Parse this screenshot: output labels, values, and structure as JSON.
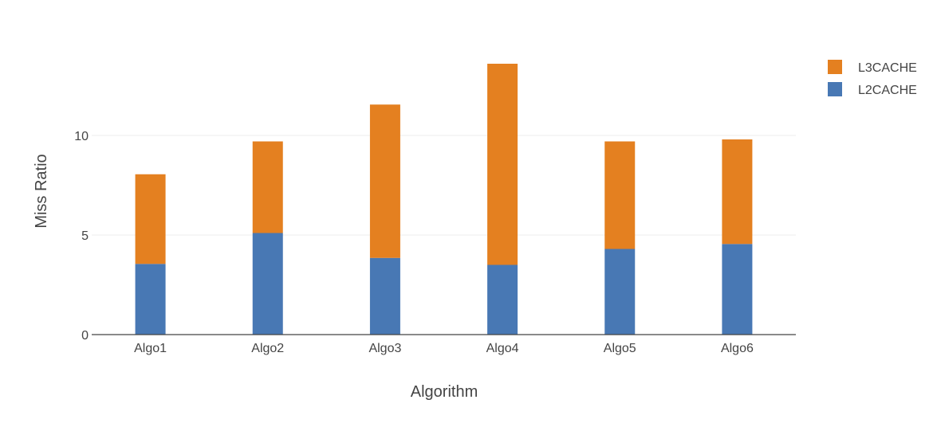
{
  "chart_data": {
    "type": "bar",
    "stacked": true,
    "categories": [
      "Algo1",
      "Algo2",
      "Algo3",
      "Algo4",
      "Algo5",
      "Algo6"
    ],
    "series": [
      {
        "name": "L2CACHE",
        "color": "#4878b4",
        "values": [
          3.55,
          5.1,
          3.85,
          3.5,
          4.3,
          4.55
        ]
      },
      {
        "name": "L3CACHE",
        "color": "#e48020",
        "values": [
          4.5,
          4.6,
          7.7,
          10.1,
          5.4,
          5.25
        ]
      }
    ],
    "xlabel": "Algorithm",
    "ylabel": "Miss Ratio",
    "ylim": [
      0,
      15
    ],
    "yticks": [
      0,
      5,
      10
    ],
    "grid": true,
    "legend": {
      "placement": "top-right",
      "entries": [
        "L3CACHE",
        "L2CACHE"
      ]
    }
  }
}
